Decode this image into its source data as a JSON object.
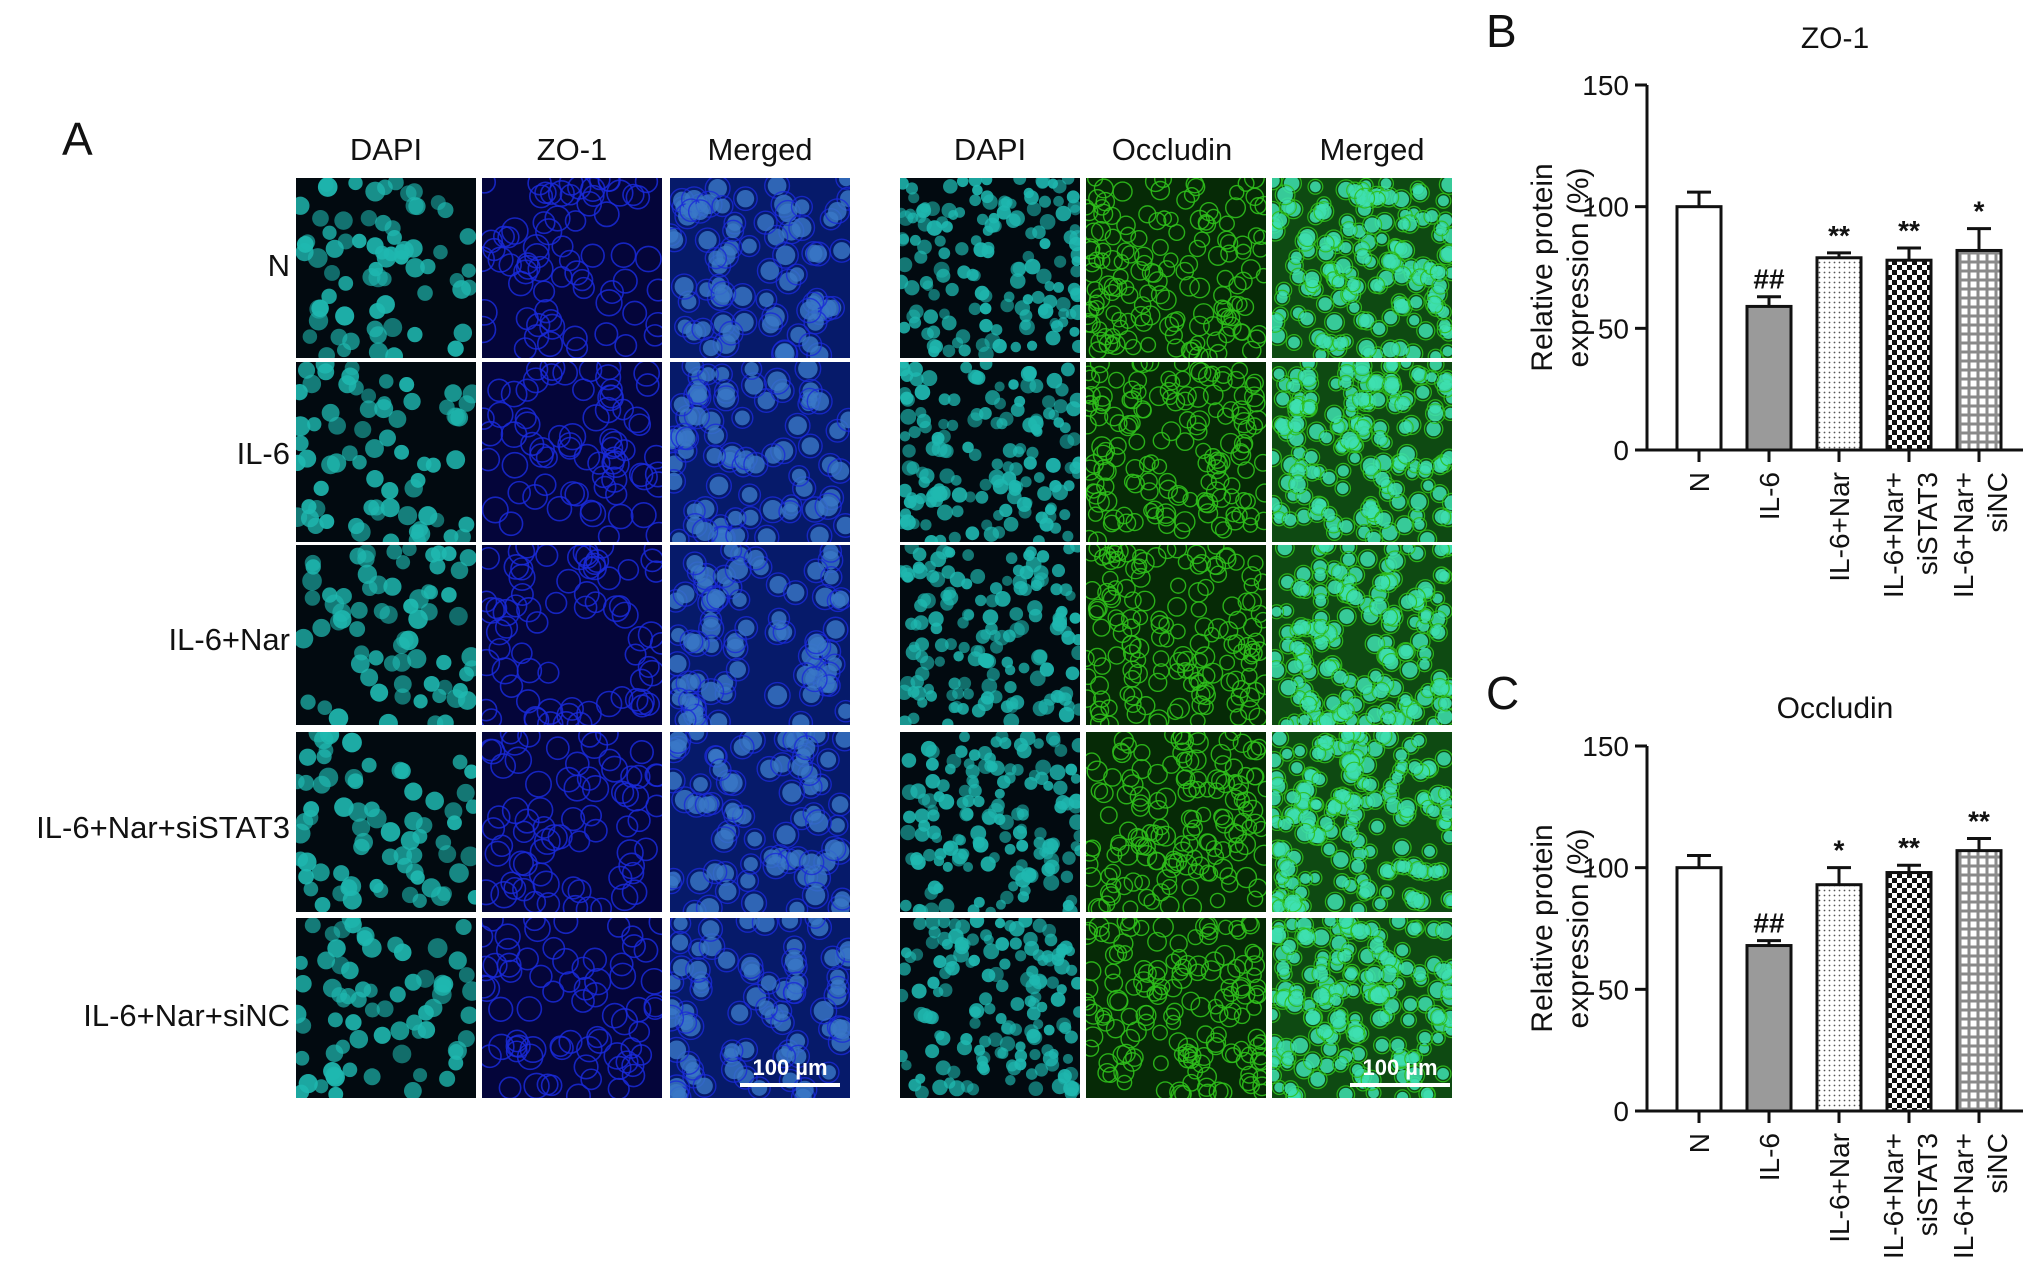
{
  "panel_a": {
    "letter": "A",
    "left_headers": [
      "DAPI",
      "ZO-1",
      "Merged"
    ],
    "right_headers": [
      "DAPI",
      "Occludin",
      "Merged"
    ],
    "row_labels": [
      "N",
      "IL-6",
      "IL-6+Nar",
      "IL-6+Nar+siSTAT3",
      "IL-6+Nar+siNC"
    ],
    "scale_bar": "100 µm",
    "colors": {
      "dapi": "#1fb8b0",
      "zo1": "#1a2ad8",
      "occludin": "#2fbf1c",
      "background": "#020a10"
    }
  },
  "chart_data": [
    {
      "panel": "B",
      "type": "bar",
      "title": "ZO-1",
      "ylabel": "Relative protein expression (%)",
      "ylabel_lines": [
        "Relative protein",
        "expression (%)"
      ],
      "xlabel": "",
      "ylim": [
        0,
        150
      ],
      "yticks": [
        0,
        50,
        100,
        150
      ],
      "categories": [
        "N",
        "IL-6",
        "IL-6+Nar",
        "IL-6+Nar+siSTAT3",
        "IL-6+Nar+siNC"
      ],
      "category_lines": [
        [
          "N"
        ],
        [
          "IL-6"
        ],
        [
          "IL-6+Nar"
        ],
        [
          "IL-6+Nar+",
          "siSTAT3"
        ],
        [
          "IL-6+Nar+",
          "siNC"
        ]
      ],
      "values": [
        100,
        59,
        79,
        78,
        82
      ],
      "errors": [
        6,
        4,
        2,
        5,
        9
      ],
      "significance": [
        "",
        "##",
        "**",
        "**",
        "*"
      ],
      "fills": [
        "white",
        "gray",
        "dots",
        "checker",
        "grid"
      ]
    },
    {
      "panel": "C",
      "type": "bar",
      "title": "Occludin",
      "ylabel": "Relative protein expression (%)",
      "ylabel_lines": [
        "Relative protein",
        "expression (%)"
      ],
      "xlabel": "",
      "ylim": [
        0,
        150
      ],
      "yticks": [
        0,
        50,
        100,
        150
      ],
      "categories": [
        "N",
        "IL-6",
        "IL-6+Nar",
        "IL-6+Nar+siSTAT3",
        "IL-6+Nar+siNC"
      ],
      "category_lines": [
        [
          "N"
        ],
        [
          "IL-6"
        ],
        [
          "IL-6+Nar"
        ],
        [
          "IL-6+Nar+",
          "siSTAT3"
        ],
        [
          "IL-6+Nar+",
          "siNC"
        ]
      ],
      "values": [
        100,
        68,
        93,
        98,
        107
      ],
      "errors": [
        5,
        2,
        7,
        3,
        5
      ],
      "significance": [
        "",
        "##",
        "*",
        "**",
        "**"
      ],
      "fills": [
        "white",
        "gray",
        "dots",
        "checker",
        "grid"
      ]
    }
  ]
}
